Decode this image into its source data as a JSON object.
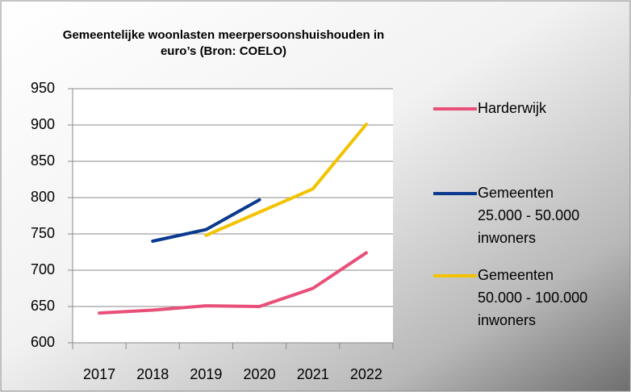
{
  "chart_data": {
    "type": "line",
    "title": "Gemeentelijke woonlasten meerpersoonshuishouden in euro’s (Bron: COELO)",
    "categories": [
      "2017",
      "2018",
      "2019",
      "2020",
      "2021",
      "2022"
    ],
    "series": [
      {
        "name": "Harderwijk",
        "color": "#e8507a",
        "values": [
          641,
          645,
          651,
          650,
          675,
          724
        ]
      },
      {
        "name": "Gemeenten 25.000 - 50.000 inwoners",
        "color": "#0b3a8e",
        "values": [
          null,
          740,
          756,
          797,
          null,
          null
        ]
      },
      {
        "name": "Gemeenten 50.000 - 100.000 inwoners",
        "color": "#f2c300",
        "values": [
          null,
          null,
          748,
          780,
          812,
          901
        ]
      }
    ],
    "ylim": [
      600,
      950
    ],
    "yticks": [
      600,
      650,
      700,
      750,
      800,
      850,
      900,
      950
    ],
    "grid": true,
    "legend": "right"
  }
}
